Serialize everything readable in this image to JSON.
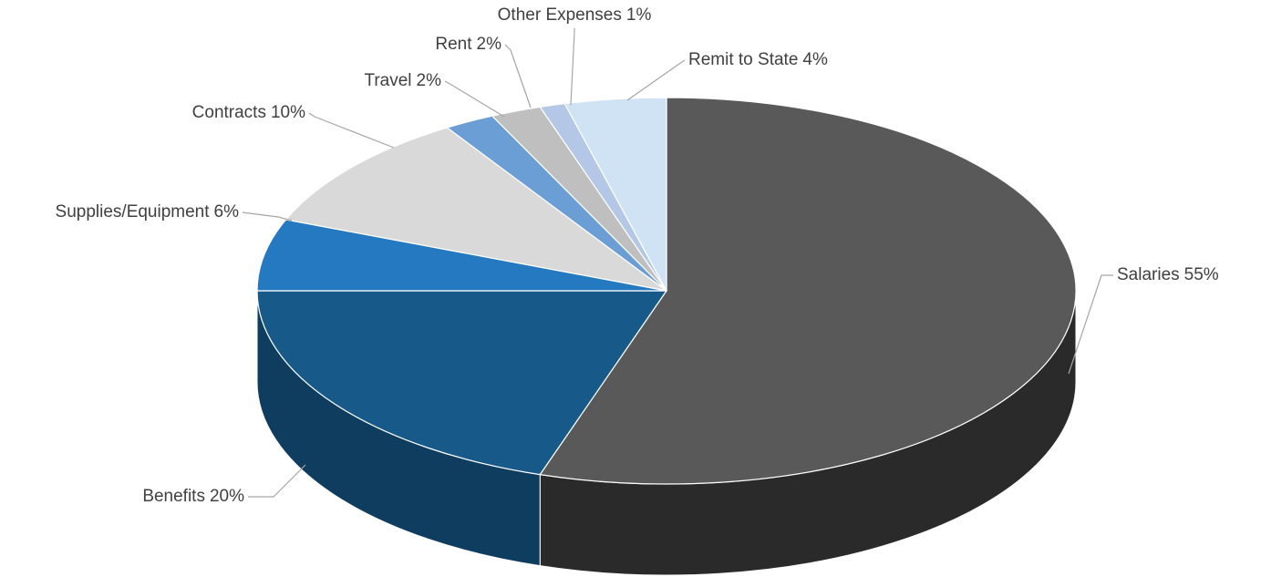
{
  "chart_data": {
    "type": "pie",
    "categories": [
      "Salaries",
      "Benefits",
      "Supplies/Equipment",
      "Contracts",
      "Travel",
      "Rent",
      "Other Expenses",
      "Remit to State"
    ],
    "values": [
      55,
      20,
      6,
      10,
      2,
      2,
      1,
      4
    ],
    "value_labels": [
      "55%",
      "20%",
      "6%",
      "10%",
      "2%",
      "2%",
      "1%",
      "4%"
    ],
    "colors": [
      "#595959",
      "#175a8a",
      "#2479c1",
      "#d9d9d9",
      "#6b9ed5",
      "#bfbfbf",
      "#b4c7e7",
      "#d0e3f5"
    ],
    "side_colors": [
      "#2a2a2a",
      "#0f3d60",
      "#18558a",
      "#a6a6a6",
      "#4a7ab0",
      "#8c8c8c",
      "#8aa3cc",
      "#a5bfd8"
    ]
  }
}
